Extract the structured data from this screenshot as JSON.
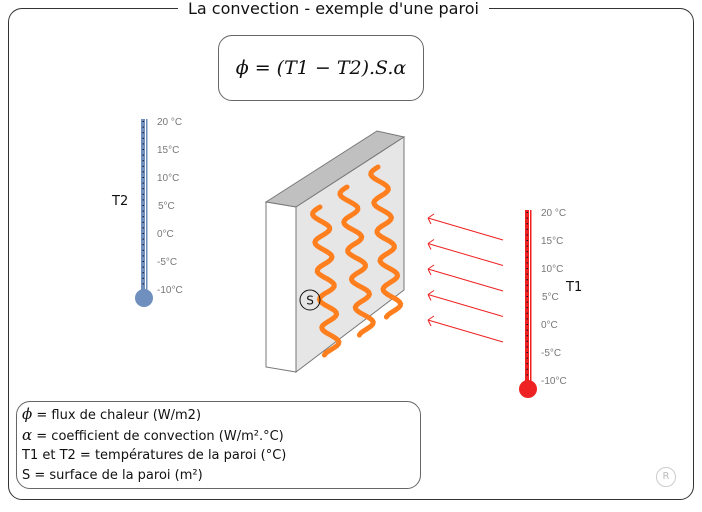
{
  "title": "La convection - exemple d'une paroi",
  "formula": "ϕ = (T1 − T2).S.α",
  "legend": [
    {
      "symbol": "ϕ",
      "text": " = flux de chaleur (W/m2)"
    },
    {
      "symbol": "α",
      "text": " = coefficient de convection (W/m².°C)"
    },
    {
      "symbol": "",
      "text": "T1 et T2 = températures de la paroi (°C)"
    },
    {
      "symbol": "",
      "text": "S = surface de la paroi (m²)"
    }
  ],
  "thermometers": [
    {
      "label": "T2",
      "color": "#6f8fbf",
      "ticks": [
        "20 °C",
        "15°C",
        "10°C",
        "5°C",
        "0°C",
        "-5°C",
        "-10°C"
      ]
    },
    {
      "label": "T1",
      "color": "#ee2222",
      "ticks": [
        "20 °C",
        "15°C",
        "10°C",
        "5°C",
        "0°C",
        "-5°C",
        "-10°C"
      ]
    }
  ],
  "surface_label": "S",
  "colors": {
    "wave": "#ff7f1e",
    "arrow": "#ee2222",
    "wall_front": "#e6e6e6",
    "wall_top": "#c0c0c0"
  },
  "watermark": "R"
}
